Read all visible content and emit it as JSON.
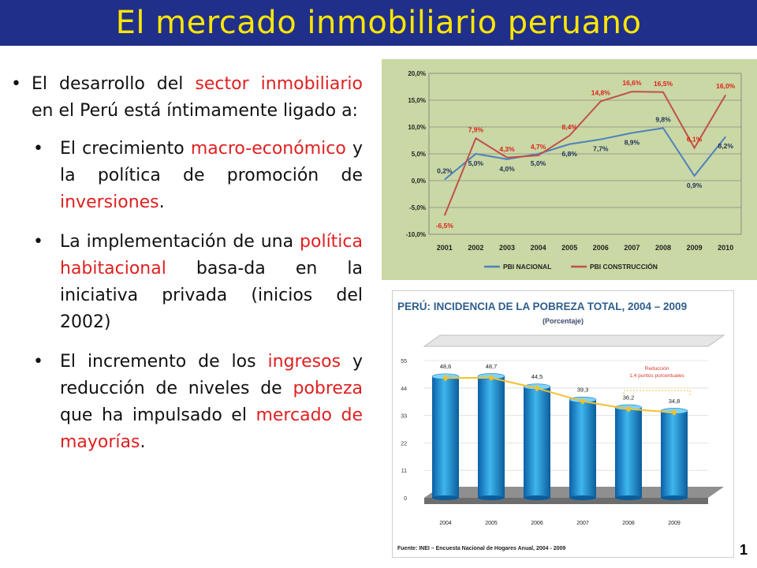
{
  "title": "El mercado inmobiliario peruano",
  "text": {
    "b1": {
      "p1": "El desarrollo del ",
      "r1": "sector inmobiliario",
      "p2": " en el Perú está íntimamente ligado a:"
    },
    "b2": {
      "p1": "El crecimiento ",
      "r1": "macro-económico",
      "p2": " y la política de promoción de ",
      "r2": "inversiones",
      "p3": "."
    },
    "b3": {
      "p1": "La implementación de una ",
      "r1": "política habitacional",
      "p2": " basa-da en la iniciativa privada (inicios del 2002)"
    },
    "b4": {
      "p1": "El incremento de los ",
      "r1": "ingresos",
      "p2": " y reducción de niveles de ",
      "r2": "pobreza",
      "p3": " que ha impulsado el ",
      "r3": "mercado de mayorías",
      "p4": "."
    }
  },
  "page_number": "1",
  "chart_data": [
    {
      "type": "line",
      "x": [
        "2001",
        "2002",
        "2003",
        "2004",
        "2005",
        "2006",
        "2007",
        "2008",
        "2009",
        "2010"
      ],
      "series": [
        {
          "name": "PBI NACIONAL",
          "values": [
            0.2,
            5.0,
            4.0,
            5.0,
            6.8,
            7.7,
            8.9,
            9.8,
            0.9,
            8.2
          ],
          "labels": [
            "0,2%",
            "5,0%",
            "4,0%",
            "5,0%",
            "6,8%",
            "7,7%",
            "8,9%",
            "9,8%",
            "0,9%",
            "8,2%"
          ],
          "color": "#4f81bd"
        },
        {
          "name": "PBI CONSTRUCCIÓN",
          "values": [
            -6.5,
            7.9,
            4.3,
            4.7,
            8.4,
            14.8,
            16.6,
            16.5,
            6.1,
            16.0
          ],
          "labels": [
            "-6,5%",
            "7,9%",
            "4,3%",
            "4,7%",
            "8,4%",
            "14,8%",
            "16,6%",
            "16,5%",
            "6,1%",
            "16,0%"
          ],
          "color": "#c0504d"
        }
      ],
      "yticks": [
        "20,0%",
        "15,0%",
        "10,0%",
        "5,0%",
        "0,0%",
        "-5,0%",
        "-10,0%"
      ],
      "ylim": [
        -10,
        20
      ],
      "grid": true,
      "legend": "bottom"
    },
    {
      "type": "bar",
      "title": "PERÚ: INCIDENCIA DE LA POBREZA TOTAL, 2004 – 2009",
      "subtitle": "(Porcentaje)",
      "categories": [
        "2004",
        "2005",
        "2006",
        "2007",
        "2008",
        "2009"
      ],
      "values": [
        48.6,
        48.7,
        44.5,
        39.3,
        36.2,
        34.8
      ],
      "value_labels": [
        "48,6",
        "48,7",
        "44,5",
        "39,3",
        "36,2",
        "34,8"
      ],
      "yticks": [
        "55",
        "44",
        "33",
        "22",
        "11",
        "0"
      ],
      "ylim": [
        0,
        55
      ],
      "annotation": "Reducción\n1,4 puntos porcentuales",
      "source": "Fuente: INEI – Encuesta Nacional de Hogares Anual, 2004 - 2009"
    }
  ]
}
